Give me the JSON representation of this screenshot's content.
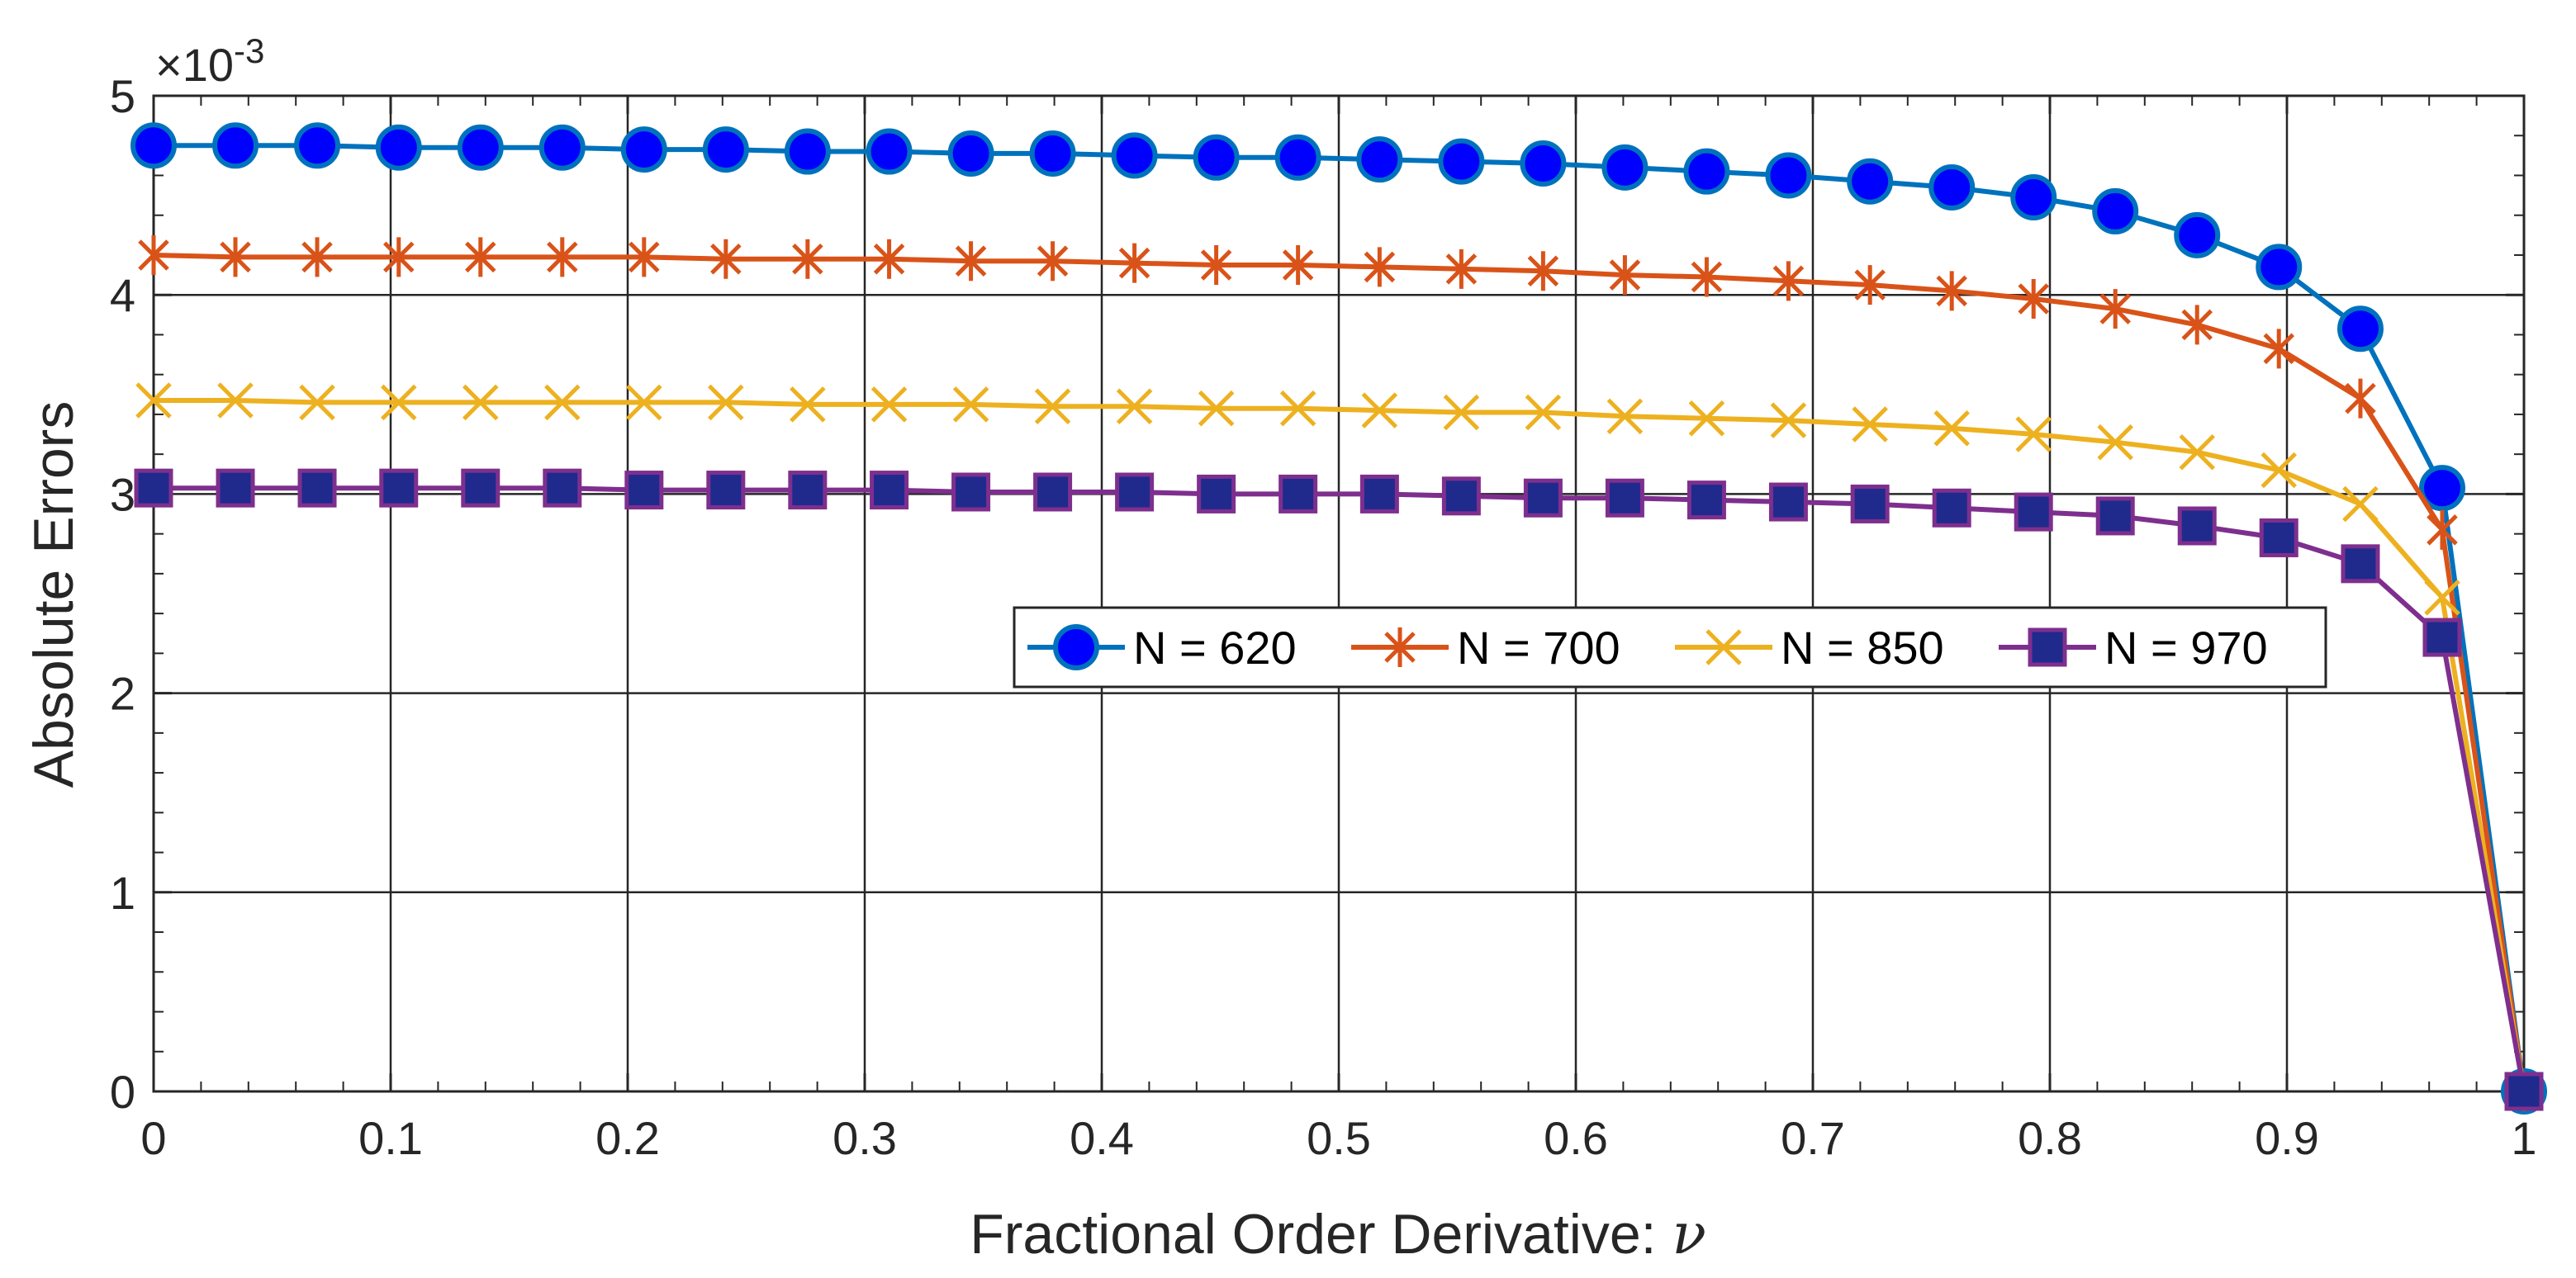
{
  "chart_data": {
    "type": "line",
    "title": "",
    "xlabel": "Fractional Order Derivative: ",
    "xlabel_symbol": "ν",
    "ylabel": "Absolute Errors",
    "y_multiplier_base": "×10",
    "y_multiplier_exp": "-3",
    "xlim": [
      0,
      1
    ],
    "ylim": [
      0,
      5
    ],
    "xticks": [
      "0",
      "0.1",
      "0.2",
      "0.3",
      "0.4",
      "0.5",
      "0.6",
      "0.7",
      "0.8",
      "0.9",
      "1"
    ],
    "yticks": [
      "0",
      "1",
      "2",
      "3",
      "4",
      "5"
    ],
    "grid": true,
    "legend_position": "center-right",
    "x": [
      0,
      0.0345,
      0.069,
      0.1034,
      0.1379,
      0.1724,
      0.2069,
      0.2414,
      0.2759,
      0.3103,
      0.3448,
      0.3793,
      0.4138,
      0.4483,
      0.4828,
      0.5172,
      0.5517,
      0.5862,
      0.6207,
      0.6552,
      0.6897,
      0.7241,
      0.7586,
      0.7931,
      0.8276,
      0.8621,
      0.8966,
      0.931,
      0.9655,
      1
    ],
    "series": [
      {
        "name": "N = 620",
        "color": "#0072BD",
        "marker": "circle",
        "marker_face": "#0000FF",
        "values": [
          4.75,
          4.75,
          4.75,
          4.74,
          4.74,
          4.74,
          4.73,
          4.73,
          4.72,
          4.72,
          4.71,
          4.71,
          4.7,
          4.69,
          4.69,
          4.68,
          4.67,
          4.66,
          4.64,
          4.62,
          4.6,
          4.57,
          4.54,
          4.49,
          4.42,
          4.3,
          4.14,
          3.83,
          3.03,
          0.0
        ]
      },
      {
        "name": "N = 700",
        "color": "#D95319",
        "marker": "asterisk",
        "values": [
          4.2,
          4.19,
          4.19,
          4.19,
          4.19,
          4.19,
          4.19,
          4.18,
          4.18,
          4.18,
          4.17,
          4.17,
          4.16,
          4.15,
          4.15,
          4.14,
          4.13,
          4.12,
          4.1,
          4.09,
          4.07,
          4.05,
          4.02,
          3.98,
          3.93,
          3.85,
          3.73,
          3.48,
          2.82,
          0.0
        ]
      },
      {
        "name": "N = 850",
        "color": "#EDB120",
        "marker": "x",
        "values": [
          3.47,
          3.47,
          3.46,
          3.46,
          3.46,
          3.46,
          3.46,
          3.46,
          3.45,
          3.45,
          3.45,
          3.44,
          3.44,
          3.43,
          3.43,
          3.42,
          3.41,
          3.41,
          3.39,
          3.38,
          3.37,
          3.35,
          3.33,
          3.3,
          3.26,
          3.21,
          3.12,
          2.95,
          2.48,
          0.0
        ]
      },
      {
        "name": "N = 970",
        "color": "#7E2F8E",
        "marker": "square",
        "marker_face": "#1F2A8C",
        "values": [
          3.03,
          3.03,
          3.03,
          3.03,
          3.03,
          3.03,
          3.02,
          3.02,
          3.02,
          3.02,
          3.01,
          3.01,
          3.01,
          3.0,
          3.0,
          3.0,
          2.99,
          2.98,
          2.98,
          2.97,
          2.96,
          2.95,
          2.93,
          2.91,
          2.89,
          2.84,
          2.78,
          2.65,
          2.28,
          0.0
        ]
      }
    ]
  }
}
